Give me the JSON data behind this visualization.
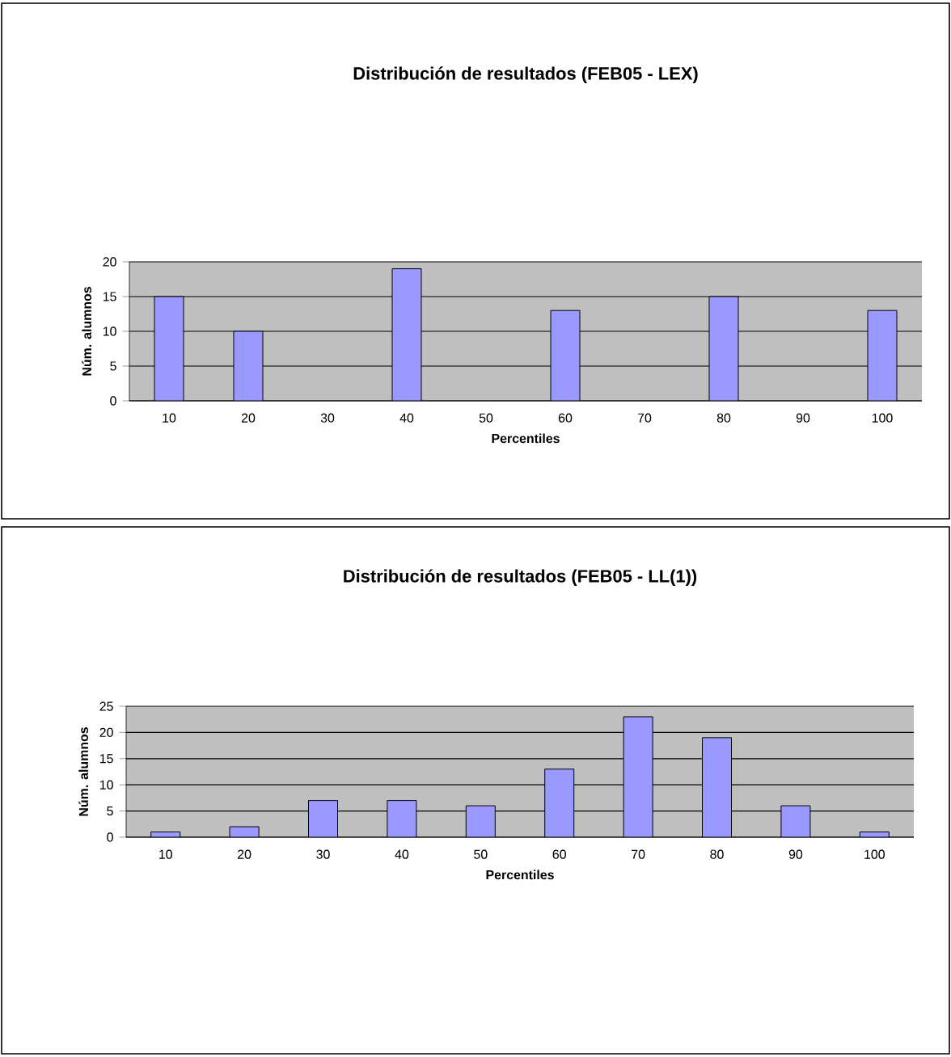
{
  "chart_data": [
    {
      "type": "bar",
      "title": "Distribución de resultados (FEB05 - LEX)",
      "xlabel": "Percentiles",
      "ylabel": "Núm. alumnos",
      "categories": [
        "10",
        "20",
        "30",
        "40",
        "50",
        "60",
        "70",
        "80",
        "90",
        "100"
      ],
      "values": [
        15,
        10,
        null,
        19,
        null,
        13,
        null,
        15,
        null,
        13
      ],
      "color": "#9999ff",
      "ylim": [
        0,
        20
      ],
      "yticks": [
        0,
        5,
        10,
        15,
        20
      ],
      "grid": "y"
    },
    {
      "type": "bar",
      "title": "Distribución de resultados (FEB05 - LL(1))",
      "xlabel": "Percentiles",
      "ylabel": "Núm. alumnos",
      "categories": [
        "10",
        "20",
        "30",
        "40",
        "50",
        "60",
        "70",
        "80",
        "90",
        "100"
      ],
      "values": [
        1,
        2,
        7,
        7,
        6,
        13,
        23,
        19,
        6,
        1
      ],
      "color": "#9999ff",
      "ylim": [
        0,
        25
      ],
      "yticks": [
        0,
        5,
        10,
        15,
        20,
        25
      ],
      "grid": "y"
    }
  ]
}
